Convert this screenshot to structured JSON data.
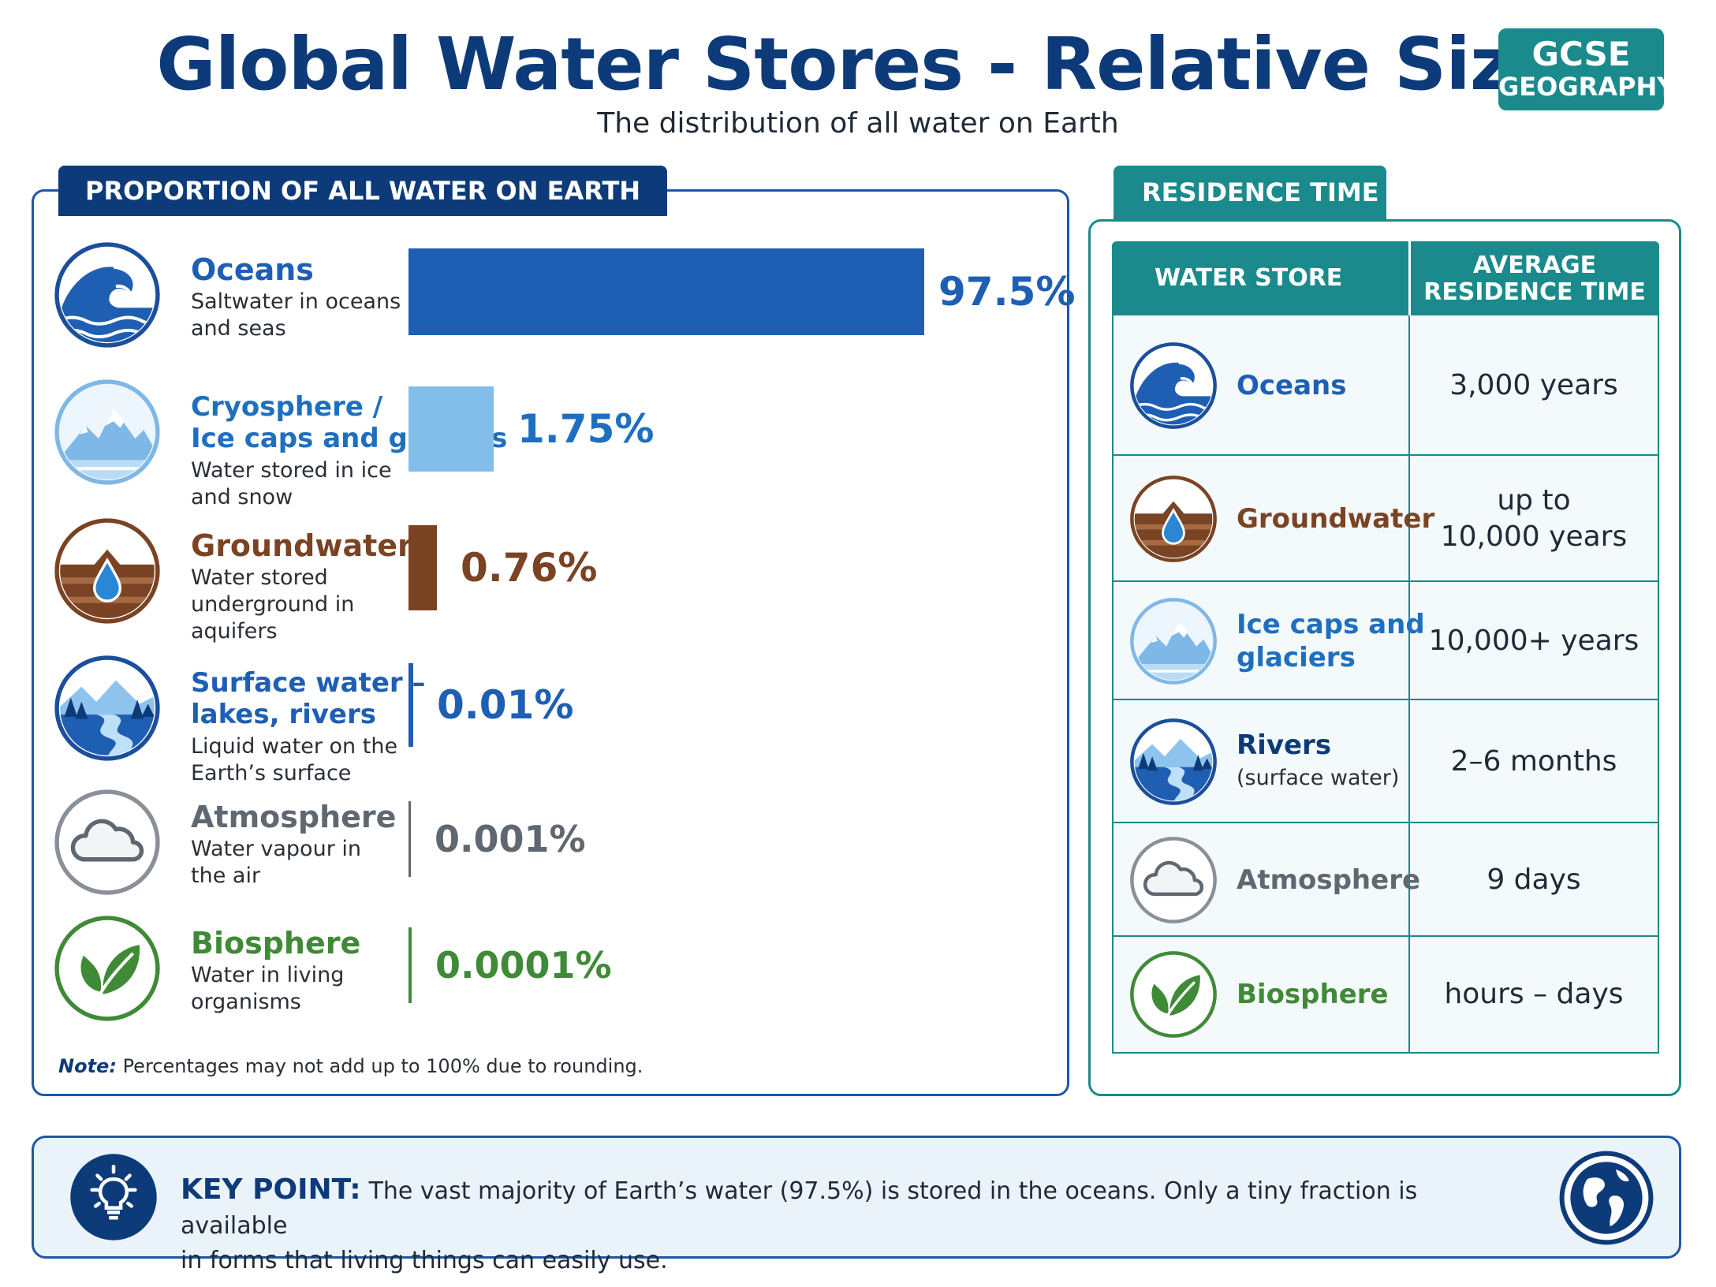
{
  "header": {
    "title": "Global Water Stores - Relative Size",
    "subtitle": "The distribution of all water on Earth",
    "badge_line1": "GCSE",
    "badge_line2": "GEOGRAPHY"
  },
  "proportion_panel": {
    "heading": "PROPORTION OF ALL WATER ON EARTH",
    "note_label": "Note:",
    "note_text": "Percentages may not add up to 100% due to rounding."
  },
  "chart_data": {
    "type": "bar",
    "orientation": "horizontal",
    "title": "PROPORTION OF ALL WATER ON EARTH",
    "unit": "%",
    "scale": "non-linear (visual relative size)",
    "items": [
      {
        "name_line1": "Oceans",
        "name_line2": "",
        "description_line1": "Saltwater in oceans",
        "description_line2": "and seas",
        "description_line3": "",
        "value": 97.5,
        "label": "97.5%",
        "color": "#1e5fb4",
        "icon": "ocean-wave-icon"
      },
      {
        "name_line1": "Cryosphere /",
        "name_line2": "Ice caps and glaciers",
        "description_line1": "Water stored in ice",
        "description_line2": "and snow",
        "description_line3": "",
        "value": 1.75,
        "label": "1.75%",
        "color": "#83bdea",
        "icon": "mountain-ice-icon"
      },
      {
        "name_line1": "Groundwater",
        "name_line2": "",
        "description_line1": "Water stored",
        "description_line2": "underground in",
        "description_line3": "aquifers",
        "value": 0.76,
        "label": "0.76%",
        "color": "#7a4323",
        "icon": "groundwater-drop-icon"
      },
      {
        "name_line1": "Surface water –",
        "name_line2": "lakes, rivers",
        "description_line1": "Liquid water on the",
        "description_line2": "Earth’s surface",
        "description_line3": "",
        "value": 0.01,
        "label": "0.01%",
        "color": "#1e5fb4",
        "icon": "river-landscape-icon"
      },
      {
        "name_line1": "Atmosphere",
        "name_line2": "",
        "description_line1": "Water vapour in",
        "description_line2": "the air",
        "description_line3": "",
        "value": 0.001,
        "label": "0.001%",
        "color": "#5f6770",
        "icon": "cloud-icon"
      },
      {
        "name_line1": "Biosphere",
        "name_line2": "",
        "description_line1": "Water in living",
        "description_line2": "organisms",
        "description_line3": "",
        "value": 0.0001,
        "label": "0.0001%",
        "color": "#3f8a36",
        "icon": "leaf-icon"
      }
    ]
  },
  "residence_panel": {
    "heading": "RESIDENCE TIME",
    "col1": "WATER STORE",
    "col2_line1": "AVERAGE",
    "col2_line2": "RESIDENCE TIME",
    "rows": [
      {
        "name_line1": "Oceans",
        "name_line2": "",
        "sub": "",
        "value_line1": "3,000 years",
        "value_line2": "",
        "color": "#1e5fb4",
        "icon": "ocean-wave-icon"
      },
      {
        "name_line1": "Groundwater",
        "name_line2": "",
        "sub": "",
        "value_line1": "up to",
        "value_line2": "10,000 years",
        "color": "#7a4323",
        "icon": "groundwater-drop-icon"
      },
      {
        "name_line1": "Ice caps and",
        "name_line2": "glaciers",
        "sub": "",
        "value_line1": "10,000+ years",
        "value_line2": "",
        "color": "#1e6fc0",
        "icon": "mountain-ice-icon"
      },
      {
        "name_line1": "Rivers",
        "name_line2": "",
        "sub": "(surface water)",
        "value_line1": "2–6 months",
        "value_line2": "",
        "color": "#0d3b7a",
        "icon": "river-landscape-icon"
      },
      {
        "name_line1": "Atmosphere",
        "name_line2": "",
        "sub": "",
        "value_line1": "9 days",
        "value_line2": "",
        "color": "#5f6770",
        "icon": "cloud-icon"
      },
      {
        "name_line1": "Biosphere",
        "name_line2": "",
        "sub": "",
        "value_line1": "hours – days",
        "value_line2": "",
        "color": "#3f8a36",
        "icon": "leaf-icon"
      }
    ]
  },
  "key_point": {
    "label": "KEY POINT:",
    "text_line1": "The vast majority of Earth’s water (97.5%) is stored in the oceans.  Only a tiny fraction is available",
    "text_line2": "in forms that living things can easily use.",
    "icon_left": "lightbulb-icon",
    "icon_right": "globe-icon"
  }
}
